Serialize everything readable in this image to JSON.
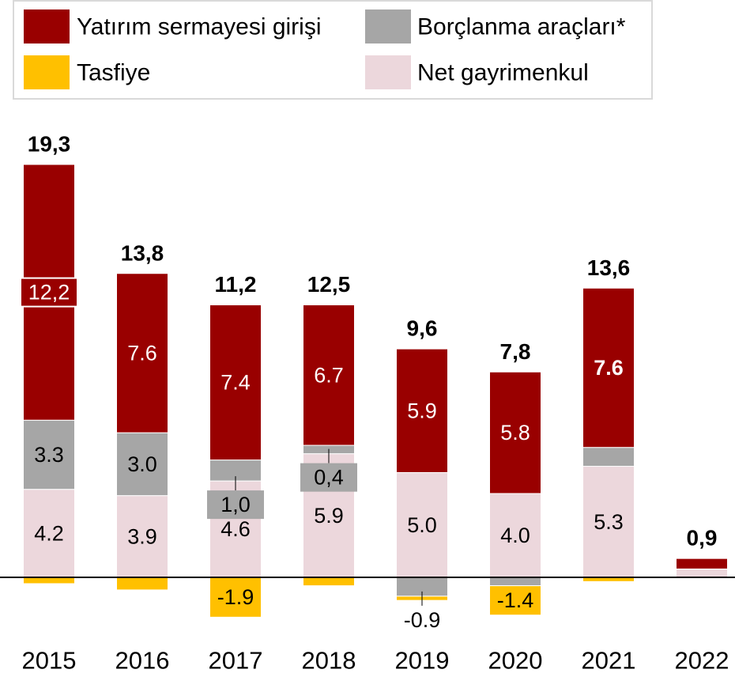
{
  "chart_data": {
    "type": "stacked-bar",
    "categories": [
      "2015",
      "2016",
      "2017",
      "2018",
      "2019",
      "2020",
      "2021",
      "2022"
    ],
    "series": [
      {
        "name": "Yatırım sermayesi girişi",
        "color": "#990000",
        "values": [
          12.2,
          7.6,
          7.4,
          6.7,
          5.9,
          5.8,
          7.6,
          0.5
        ],
        "value_labels": [
          "12,2",
          "7.6",
          "7.4",
          "6.7",
          "5.9",
          "5.8",
          "7.6",
          null
        ]
      },
      {
        "name": "Borçlanma araçları*",
        "color": "#a6a6a6",
        "values": [
          3.3,
          3.0,
          1.0,
          0.4,
          -0.9,
          -0.4,
          0.9,
          0
        ],
        "value_labels": [
          "3.3",
          "3.0",
          "1,0",
          "0,4",
          "-0.9",
          null,
          null,
          null
        ]
      },
      {
        "name": "Tasfiye",
        "color": "#ffc000",
        "values": [
          -0.3,
          -0.6,
          -1.9,
          -0.4,
          -0.2,
          -1.4,
          -0.2,
          0
        ],
        "value_labels": [
          null,
          null,
          "-1.9",
          null,
          null,
          "-1.4",
          null,
          null
        ]
      },
      {
        "name": "Net gayrimenkul",
        "color": "#ecd7dc",
        "values": [
          4.2,
          3.9,
          4.6,
          5.9,
          5.0,
          4.0,
          5.3,
          0.4
        ],
        "value_labels": [
          "4.2",
          "3.9",
          "4.6",
          "5.9",
          "5.0",
          "4.0",
          "5.3",
          null
        ]
      }
    ],
    "totals": [
      19.3,
      13.8,
      11.2,
      12.5,
      9.6,
      7.8,
      13.6,
      0.9
    ],
    "total_labels": [
      "19,3",
      "13,8",
      "11,2",
      "12,5",
      "9,6",
      "7,8",
      "13,6",
      "0,9"
    ],
    "ylim": [
      -3,
      21
    ]
  }
}
